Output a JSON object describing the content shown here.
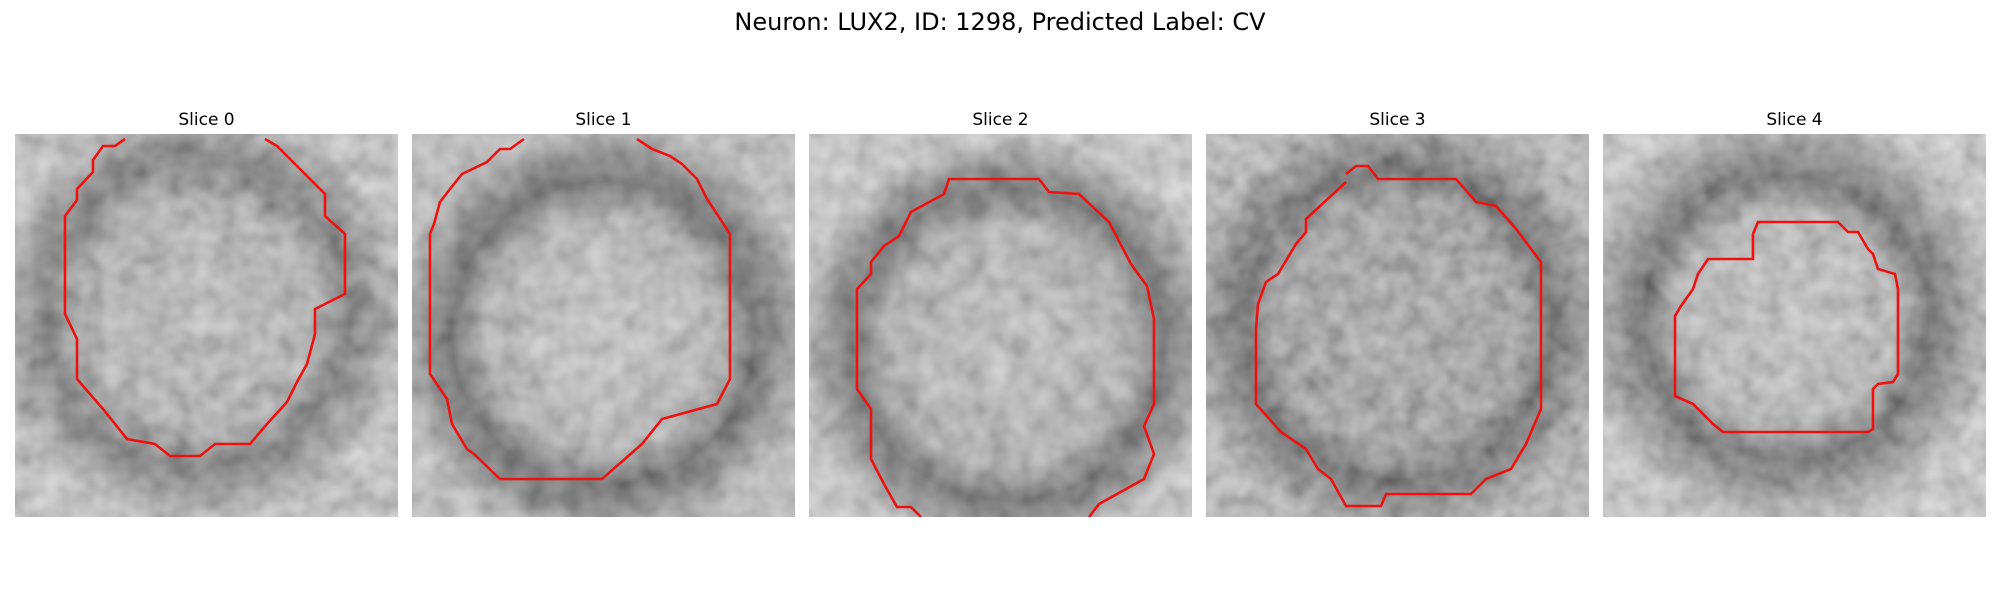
{
  "figure": {
    "title": "Neuron: LUX2, ID: 1298, Predicted Label: CV"
  },
  "colors": {
    "contour": "#ee1111",
    "background": "#ffffff"
  },
  "panels": [
    {
      "title": "Slice 0"
    },
    {
      "title": "Slice 1"
    },
    {
      "title": "Slice 2"
    },
    {
      "title": "Slice 3"
    },
    {
      "title": "Slice 4"
    }
  ]
}
